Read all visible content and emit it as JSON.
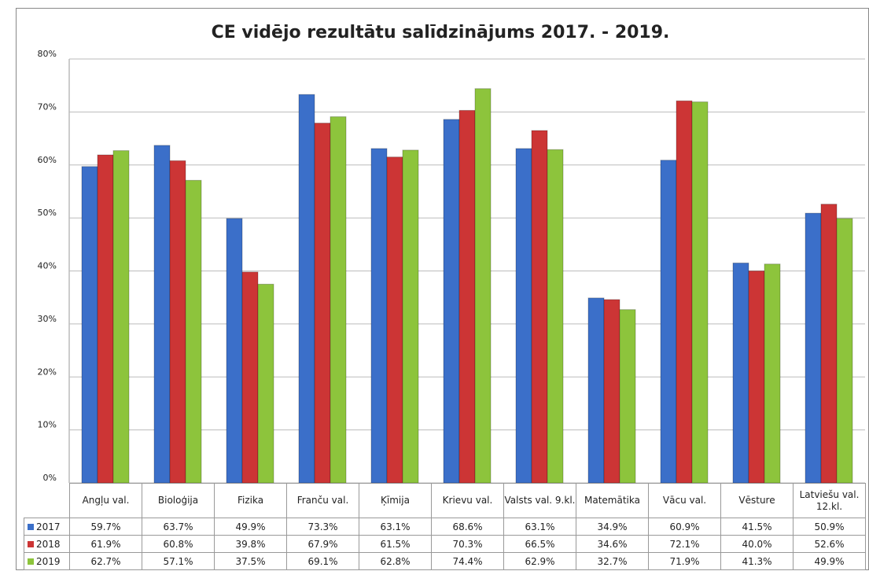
{
  "chart_data": {
    "type": "bar",
    "title": "CE vidējo rezultātu salīdzinājums 2017. - 2019.",
    "categories": [
      "Angļu val.",
      "Bioloģija",
      "Fizika",
      "Franču val.",
      "Ķīmija",
      "Krievu val.",
      "Valsts val. 9.kl.",
      "Matemātika",
      "Vācu val.",
      "Vēsture",
      "Latviešu val. 12.kl."
    ],
    "series": [
      {
        "name": "2017",
        "color": "#3b6fc9",
        "values": [
          59.7,
          63.7,
          49.9,
          73.3,
          63.1,
          68.6,
          63.1,
          34.9,
          60.9,
          41.5,
          50.9
        ],
        "value_labels": [
          "59.7%",
          "63.7%",
          "49.9%",
          "73.3%",
          "63.1%",
          "68.6%",
          "63.1%",
          "34.9%",
          "60.9%",
          "41.5%",
          "50.9%"
        ]
      },
      {
        "name": "2018",
        "color": "#cc3535",
        "values": [
          61.9,
          60.8,
          39.8,
          67.9,
          61.5,
          70.3,
          66.5,
          34.6,
          72.1,
          40.0,
          52.6
        ],
        "value_labels": [
          "61.9%",
          "60.8%",
          "39.8%",
          "67.9%",
          "61.5%",
          "70.3%",
          "66.5%",
          "34.6%",
          "72.1%",
          "40.0%",
          "52.6%"
        ]
      },
      {
        "name": "2019",
        "color": "#8dc43c",
        "values": [
          62.7,
          57.1,
          37.5,
          69.1,
          62.8,
          74.4,
          62.9,
          32.7,
          71.9,
          41.3,
          49.9
        ],
        "value_labels": [
          "62.7%",
          "57.1%",
          "37.5%",
          "69.1%",
          "62.8%",
          "74.4%",
          "62.9%",
          "32.7%",
          "71.9%",
          "41.3%",
          "49.9%"
        ]
      }
    ],
    "ylim": [
      0,
      80
    ],
    "yticks": [
      {
        "value": 0,
        "label": "0%"
      },
      {
        "value": 10,
        "label": "10%"
      },
      {
        "value": 20,
        "label": "20%"
      },
      {
        "value": 30,
        "label": "30%"
      },
      {
        "value": 40,
        "label": "40%"
      },
      {
        "value": 50,
        "label": "50%"
      },
      {
        "value": 60,
        "label": "60%"
      },
      {
        "value": 70,
        "label": "70%"
      },
      {
        "value": 80,
        "label": "80%"
      }
    ],
    "grid": true
  }
}
